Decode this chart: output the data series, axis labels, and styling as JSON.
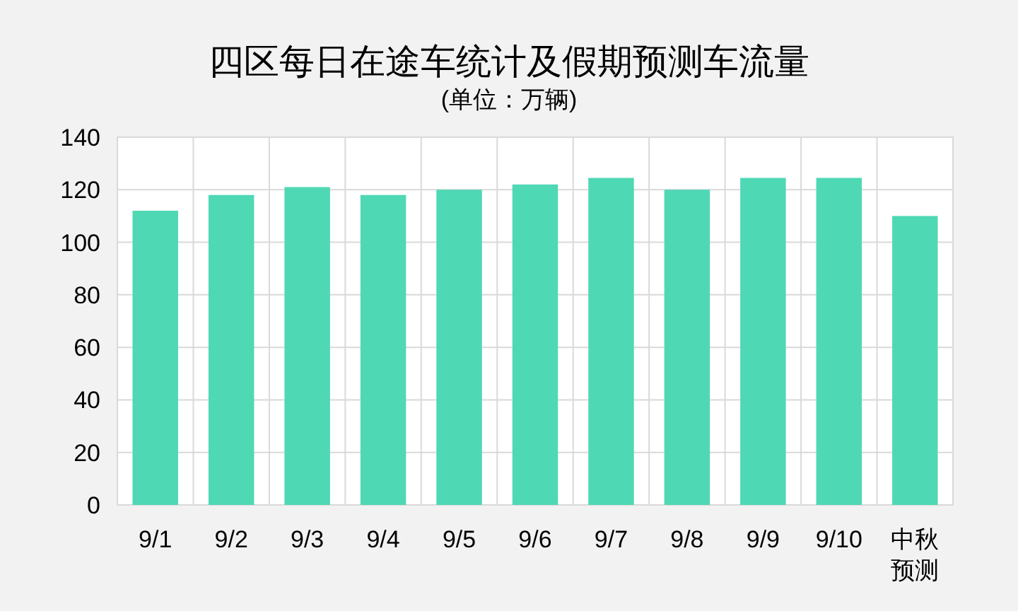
{
  "chart_data": {
    "type": "bar",
    "title": "四区每日在途车统计及假期预测车流量",
    "subtitle": "(单位：万辆)",
    "categories": [
      "9/1",
      "9/2",
      "9/3",
      "9/4",
      "9/5",
      "9/6",
      "9/7",
      "9/8",
      "9/9",
      "9/10",
      "中秋预测"
    ],
    "values": [
      112,
      118,
      121,
      118,
      120,
      122,
      124.5,
      120,
      124.5,
      124.5,
      110
    ],
    "color": "#4fd8b4",
    "ylim": [
      0,
      140
    ],
    "yticks": [
      0,
      20,
      40,
      60,
      80,
      100,
      120,
      140
    ],
    "grid": true
  }
}
